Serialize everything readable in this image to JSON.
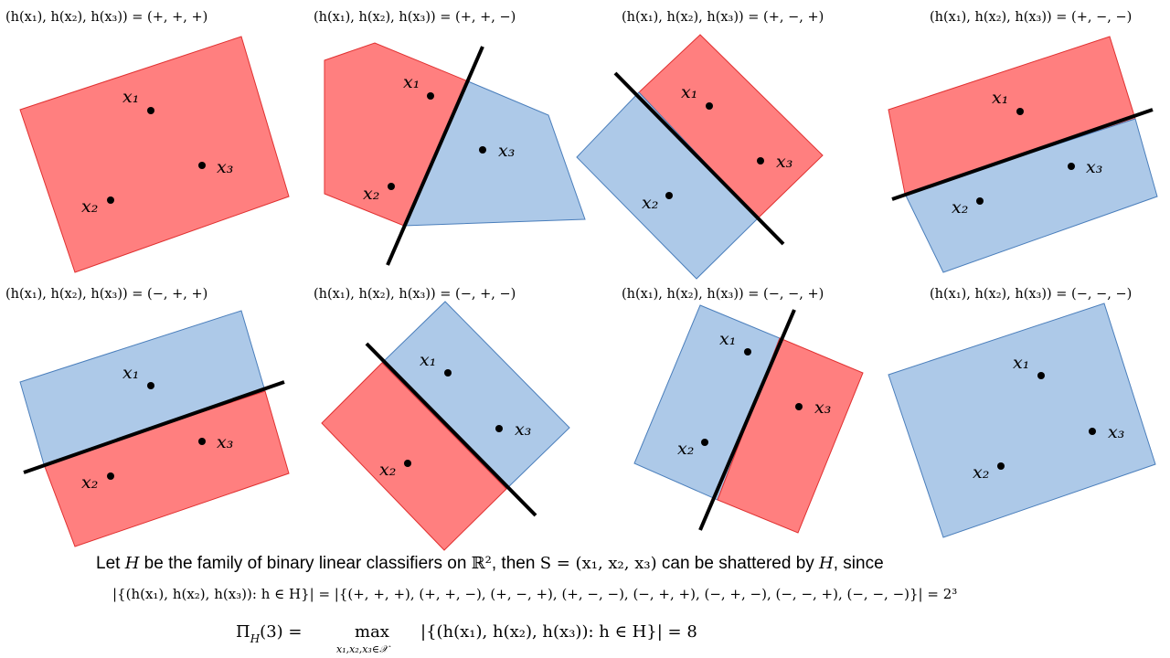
{
  "panels": [
    {
      "caption": "(h(x₁), h(x₂), h(x₃)) = (+, +, +)",
      "labels": {
        "x1": "x₁",
        "x2": "x₂",
        "x3": "x₃"
      },
      "has_boundary": false,
      "fill": "red"
    },
    {
      "caption": "(h(x₁), h(x₂), h(x₃)) = (+, +, −)",
      "labels": {
        "x1": "x₁",
        "x2": "x₂",
        "x3": "x₃"
      },
      "has_boundary": true
    },
    {
      "caption": "(h(x₁), h(x₂), h(x₃)) = (+, −, +)",
      "labels": {
        "x1": "x₁",
        "x2": "x₂",
        "x3": "x₃"
      },
      "has_boundary": true
    },
    {
      "caption": "(h(x₁), h(x₂), h(x₃)) = (+, −, −)",
      "labels": {
        "x1": "x₁",
        "x2": "x₂",
        "x3": "x₃"
      },
      "has_boundary": true
    },
    {
      "caption": "(h(x₁), h(x₂), h(x₃)) = (−, +, +)",
      "labels": {
        "x1": "x₁",
        "x2": "x₂",
        "x3": "x₃"
      },
      "has_boundary": true
    },
    {
      "caption": "(h(x₁), h(x₂), h(x₃)) = (−, +, −)",
      "labels": {
        "x1": "x₁",
        "x2": "x₂",
        "x3": "x₃"
      },
      "has_boundary": true
    },
    {
      "caption": "(h(x₁), h(x₂), h(x₃)) = (−, −, +)",
      "labels": {
        "x1": "x₁",
        "x2": "x₂",
        "x3": "x₃"
      },
      "has_boundary": true
    },
    {
      "caption": "(h(x₁), h(x₂), h(x₃)) = (−, −, −)",
      "labels": {
        "x1": "x₁",
        "x2": "x₂",
        "x3": "x₃"
      },
      "has_boundary": false,
      "fill": "blue"
    }
  ],
  "text": {
    "line1_a": "Let ",
    "line1_H": "H",
    "line1_b": " be the family of binary linear classifiers on ",
    "line1_R2": "ℝ²",
    "line1_c": ", then ",
    "line1_S": "S = (x₁, x₂, x₃)",
    "line1_d": " can be shattered by ",
    "line1_H2": "H",
    "line1_e": ", since",
    "line2": "|{(h(x₁), h(x₂), h(x₃)): h ∈ H}| = |{(+, +, +), (+, +, −), (+, −, +), (+, −, −), (−, +, +), (−, +, −), (−, −, +), (−, −, −)}| = 2³",
    "line3_lhs": "Π",
    "line3_sub": "H",
    "line3_arg": "(3) = ",
    "line3_max": "max",
    "line3_maxsub": "x₁,x₂,x₃∈𝒳",
    "line3_rhs": "|{(h(x₁), h(x₂), h(x₃)): h ∈ H}| = 8"
  },
  "colors": {
    "positive_region": "#FF7F7F",
    "positive_border": "#E03030",
    "negative_region": "#ADC9E8",
    "negative_border": "#4A7EBB",
    "boundary": "#000000",
    "point": "#000000"
  }
}
